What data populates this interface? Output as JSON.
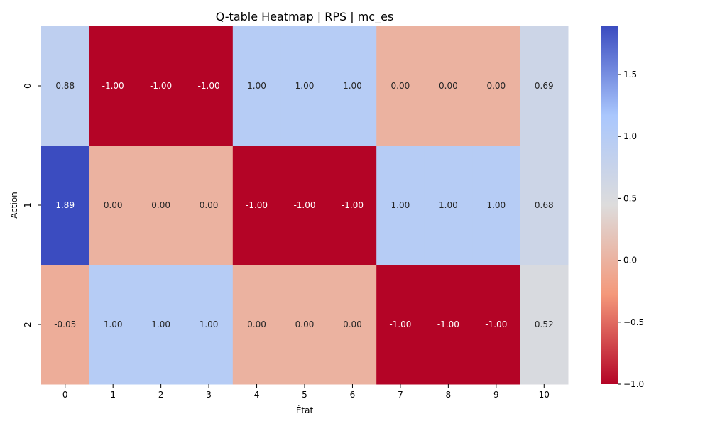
{
  "chart_data": {
    "type": "heatmap",
    "title": "Q-table Heatmap | RPS | mc_es",
    "xlabel": "État",
    "ylabel": "Action",
    "x_categories": [
      "0",
      "1",
      "2",
      "3",
      "4",
      "5",
      "6",
      "7",
      "8",
      "9",
      "10"
    ],
    "y_categories": [
      "0",
      "1",
      "2"
    ],
    "values": [
      [
        0.88,
        -1.0,
        -1.0,
        -1.0,
        1.0,
        1.0,
        1.0,
        0.0,
        0.0,
        0.0,
        0.69
      ],
      [
        1.89,
        0.0,
        0.0,
        0.0,
        -1.0,
        -1.0,
        -1.0,
        1.0,
        1.0,
        1.0,
        0.68
      ],
      [
        -0.05,
        1.0,
        1.0,
        1.0,
        0.0,
        0.0,
        0.0,
        -1.0,
        -1.0,
        -1.0,
        0.52
      ]
    ],
    "value_format_decimals": 2,
    "colormap": "coolwarm_r",
    "color_range": [
      -1.0,
      1.89
    ],
    "colorbar_ticks": [
      "−1.0",
      "−0.5",
      "0.0",
      "0.5",
      "1.0",
      "1.5"
    ],
    "colorbar_tick_values": [
      -1.0,
      -0.5,
      0.0,
      0.5,
      1.0,
      1.5
    ],
    "colorbar_stops": [
      "#b40426",
      "#f4987a",
      "#dddcdc",
      "#aac7fd",
      "#3b4cc0"
    ]
  }
}
